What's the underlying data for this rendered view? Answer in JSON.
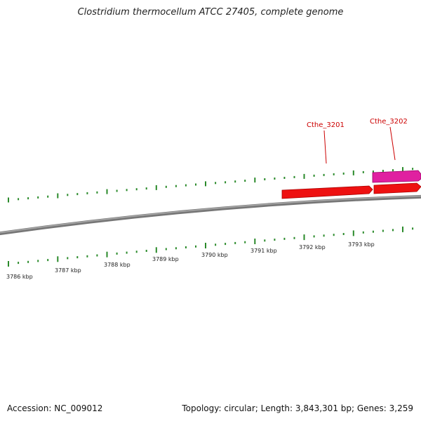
{
  "title": "Clostridium thermocellum ATCC 27405, complete genome",
  "footer": {
    "accession": "Accession: NC_009012",
    "summary": "Topology: circular; Length: 3,843,301 bp; Genes: 3,259"
  },
  "colors": {
    "tick": "#2a8a2a",
    "backbone": "#888888",
    "gene_red": "#ee1111",
    "gene_magenta": "#e020a0",
    "label_red": "#cc0000"
  },
  "kbp_labels": [
    "3786 kbp",
    "3787 kbp",
    "3788 kbp",
    "3789 kbp",
    "3790 kbp",
    "3791 kbp",
    "3792 kbp",
    "3793 kbp"
  ],
  "genes": [
    {
      "name": "Cthe_3201",
      "color": "gene_red"
    },
    {
      "name": "Cthe_3202",
      "color": "gene_magenta"
    }
  ]
}
